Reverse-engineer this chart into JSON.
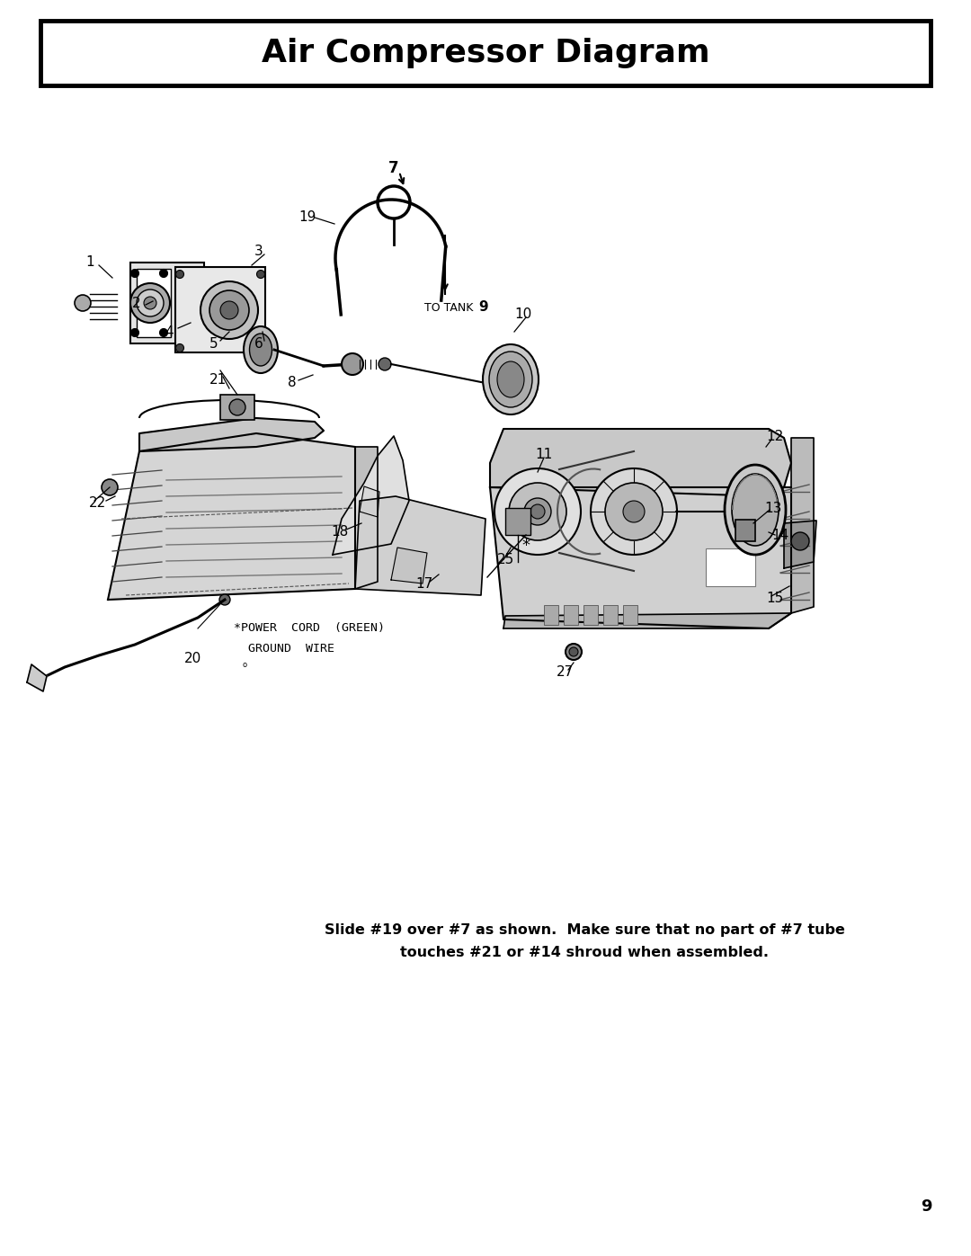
{
  "title": "Air Compressor Diagram",
  "title_fontsize": 26,
  "page_bg": "#ffffff",
  "bottom_note_line1": "Slide #19 over #7 as shown.  Make sure that no part of #7 tube",
  "bottom_note_line2": "touches #21 or #14 shroud when assembled.",
  "note_fontsize": 11.5,
  "page_number": "9",
  "page_number_fontsize": 13,
  "power_cord_text1": "*POWER  CORD  (GREEN)",
  "power_cord_text2": "  GROUND  WIRE",
  "power_cord_fontsize": 9.5,
  "label_fontsize": 11
}
